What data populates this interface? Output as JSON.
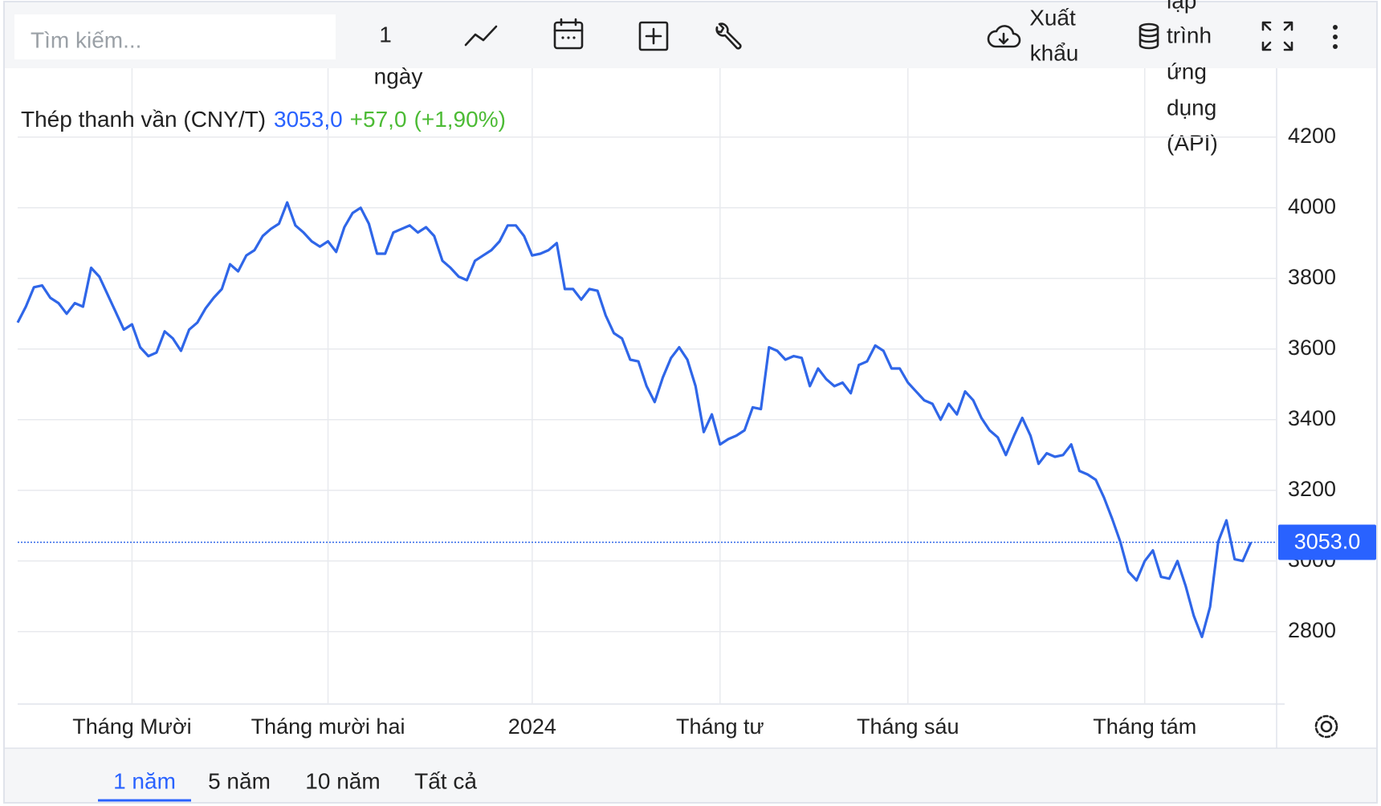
{
  "toolbar": {
    "search_placeholder": "Tìm kiếm...",
    "interval": [
      "1",
      "ngày"
    ],
    "export": [
      "Xuất",
      "khẩu"
    ],
    "api": [
      "lập",
      "trình",
      "ứng",
      "dụng",
      "(API)"
    ]
  },
  "range_tabs": [
    "1 năm",
    "5 năm",
    "10 năm",
    "Tất cả"
  ],
  "chart_data": {
    "type": "line",
    "title": "Thép thanh vần (CNY/T)",
    "quote": {
      "price": "3053,0",
      "change": "+57,0",
      "change_pct": "(+1,90%)"
    },
    "last_label": "3053.0",
    "color": "#2f66e8",
    "categories": [
      null,
      null,
      null,
      null,
      null,
      null,
      null,
      null,
      null,
      null,
      null,
      null,
      null,
      null,
      "Tháng Mười",
      null,
      null,
      null,
      null,
      null,
      null,
      null,
      null,
      null,
      null,
      null,
      null,
      null,
      null,
      null,
      null,
      null,
      null,
      null,
      null,
      null,
      null,
      null,
      "Tháng mười hai",
      null,
      null,
      null,
      null,
      null,
      null,
      null,
      null,
      null,
      null,
      null,
      null,
      null,
      null,
      null,
      null,
      null,
      null,
      null,
      null,
      null,
      null,
      null,
      null,
      "2024",
      null,
      null,
      null,
      null,
      null,
      null,
      null,
      null,
      null,
      null,
      null,
      null,
      null,
      null,
      null,
      null,
      null,
      null,
      null,
      null,
      null,
      null,
      "Tháng tư",
      null,
      null,
      null,
      null,
      null,
      null,
      null,
      null,
      null,
      null,
      null,
      null,
      null,
      null,
      null,
      null,
      null,
      null,
      null,
      null,
      null,
      null,
      "Tháng sáu",
      null,
      null,
      null,
      null,
      null,
      null,
      null,
      null,
      null,
      null,
      null,
      null,
      null,
      null,
      null,
      null,
      null,
      null,
      null,
      null,
      null,
      null,
      null,
      null,
      null,
      null,
      null,
      null,
      "Tháng tám",
      null,
      null,
      null,
      null,
      null,
      null,
      null,
      null,
      null,
      null,
      null,
      null,
      null
    ],
    "values": [
      3675,
      3720,
      3775,
      3780,
      3745,
      3730,
      3700,
      3730,
      3720,
      3830,
      3805,
      3755,
      3705,
      3655,
      3670,
      3605,
      3580,
      3590,
      3650,
      3630,
      3595,
      3655,
      3675,
      3715,
      3745,
      3770,
      3840,
      3820,
      3865,
      3880,
      3920,
      3940,
      3955,
      4015,
      3950,
      3930,
      3905,
      3890,
      3905,
      3875,
      3945,
      3985,
      4000,
      3955,
      3870,
      3870,
      3930,
      3940,
      3950,
      3930,
      3945,
      3920,
      3850,
      3830,
      3805,
      3795,
      3850,
      3865,
      3880,
      3905,
      3950,
      3950,
      3920,
      3865,
      3870,
      3880,
      3900,
      3770,
      3770,
      3740,
      3770,
      3765,
      3695,
      3645,
      3630,
      3570,
      3565,
      3495,
      3450,
      3520,
      3575,
      3605,
      3570,
      3495,
      3365,
      3415,
      3330,
      3345,
      3355,
      3370,
      3435,
      3430,
      3605,
      3595,
      3570,
      3580,
      3575,
      3495,
      3545,
      3515,
      3495,
      3505,
      3475,
      3555,
      3565,
      3610,
      3595,
      3545,
      3545,
      3505,
      3480,
      3455,
      3445,
      3400,
      3445,
      3415,
      3480,
      3455,
      3405,
      3370,
      3350,
      3300,
      3355,
      3405,
      3355,
      3275,
      3305,
      3295,
      3300,
      3330,
      3255,
      3245,
      3230,
      3180,
      3120,
      3055,
      2970,
      2945,
      3000,
      3030,
      2955,
      2950,
      3000,
      2930,
      2845,
      2785,
      2870,
      3055,
      3115,
      3005,
      3000,
      3053
    ],
    "ylim": [
      2595,
      4395
    ],
    "yticks": [
      2800,
      3000,
      3200,
      3400,
      3600,
      3800,
      4000,
      4200
    ],
    "grid": true
  }
}
